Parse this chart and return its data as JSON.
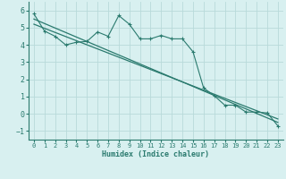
{
  "xlabel": "Humidex (Indice chaleur)",
  "background_color": "#d8f0f0",
  "grid_color": "#b8dada",
  "line_color": "#2a7a6e",
  "xlim": [
    -0.5,
    23.5
  ],
  "ylim": [
    -1.5,
    6.5
  ],
  "xticks": [
    0,
    1,
    2,
    3,
    4,
    5,
    6,
    7,
    8,
    9,
    10,
    11,
    12,
    13,
    14,
    15,
    16,
    17,
    18,
    19,
    20,
    21,
    22,
    23
  ],
  "yticks": [
    -1,
    0,
    1,
    2,
    3,
    4,
    5,
    6
  ],
  "series1_x": [
    0,
    1,
    2,
    3,
    4,
    5,
    6,
    7,
    8,
    9,
    10,
    11,
    12,
    13,
    14,
    15,
    16,
    17,
    18,
    19,
    20,
    21,
    22,
    23
  ],
  "series1_y": [
    5.8,
    4.8,
    4.5,
    4.0,
    4.15,
    4.2,
    4.75,
    4.5,
    5.7,
    5.2,
    4.35,
    4.35,
    4.55,
    4.35,
    4.35,
    3.6,
    1.5,
    1.05,
    0.5,
    0.5,
    0.1,
    0.1,
    0.05,
    -0.7
  ],
  "series2_x": [
    0,
    23
  ],
  "series2_y": [
    5.5,
    -0.5
  ],
  "series3_x": [
    0,
    23
  ],
  "series3_y": [
    5.2,
    -0.3
  ],
  "font_family": "monospace",
  "tick_fontsize": 5,
  "xlabel_fontsize": 6
}
